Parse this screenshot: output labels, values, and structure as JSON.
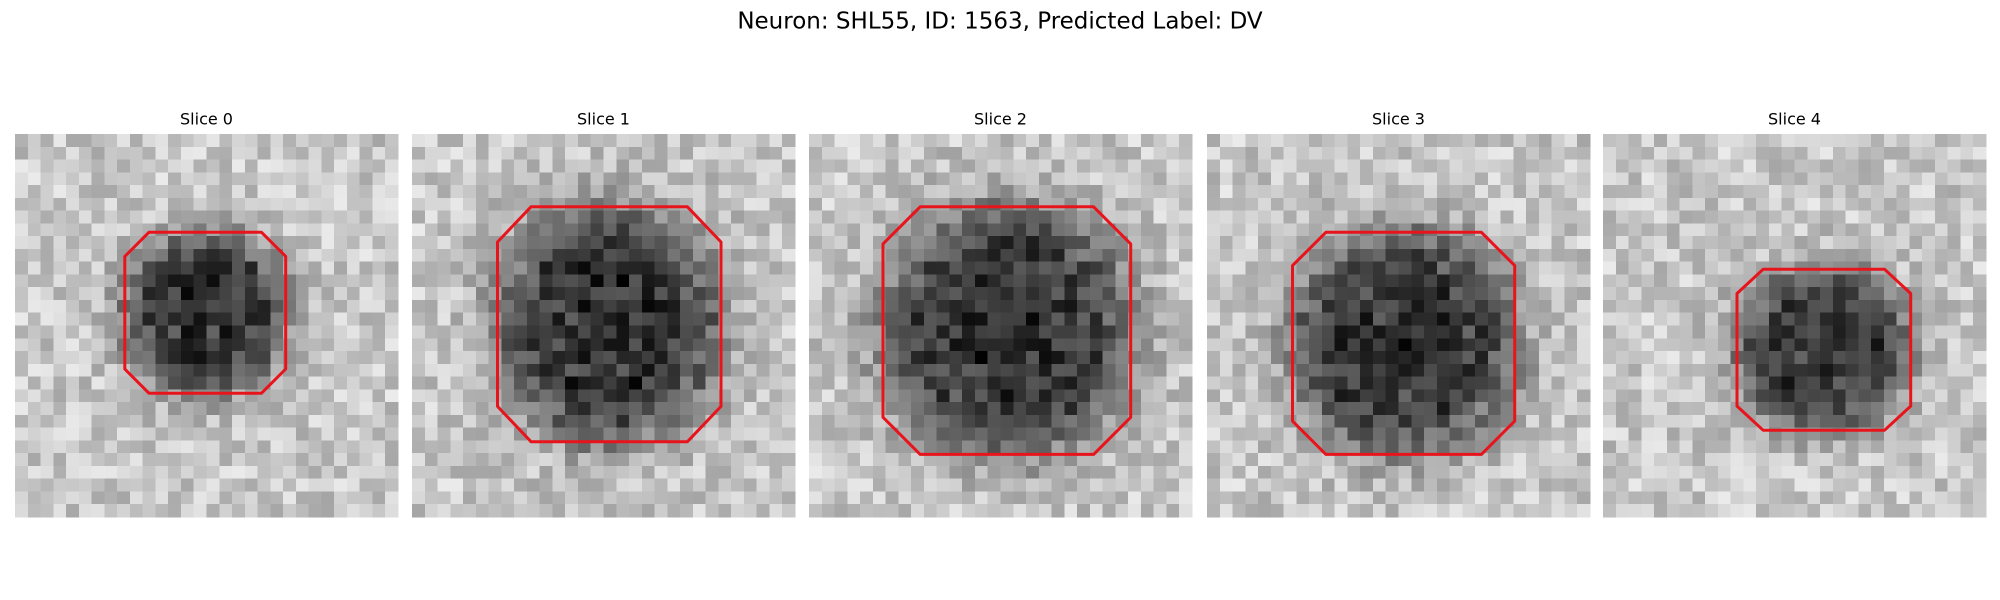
{
  "title": "Neuron: SHL55, ID: 1563, Predicted Label: DV",
  "panels": [
    {
      "title": "Slice 0"
    },
    {
      "title": "Slice 1"
    },
    {
      "title": "Slice 2"
    },
    {
      "title": "Slice 3"
    },
    {
      "title": "Slice 4"
    }
  ]
}
